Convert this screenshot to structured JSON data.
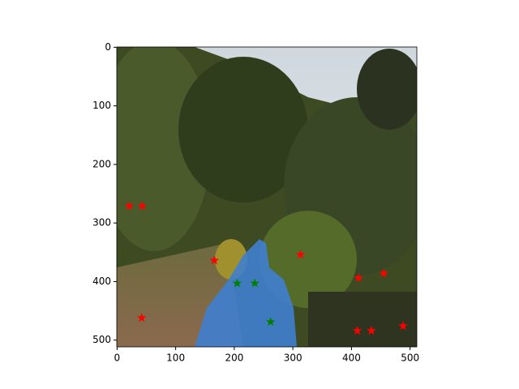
{
  "chart_data": {
    "type": "scatter",
    "marker": "star",
    "xlim": [
      -0.5,
      511.5
    ],
    "ylim": [
      511.5,
      -0.5
    ],
    "xticks": [
      0,
      100,
      200,
      300,
      400,
      500
    ],
    "yticks": [
      0,
      100,
      200,
      300,
      400,
      500
    ],
    "series": [
      {
        "color": "#ff0000",
        "x": [
          21,
          43,
          166,
          313,
          412,
          455,
          42,
          410,
          434,
          488
        ],
        "values": [
          271,
          271,
          364,
          354,
          394,
          386,
          462,
          484,
          484,
          476
        ]
      },
      {
        "color": "#008000",
        "x": [
          205,
          235,
          262
        ],
        "values": [
          403,
          403,
          469
        ]
      }
    ]
  }
}
